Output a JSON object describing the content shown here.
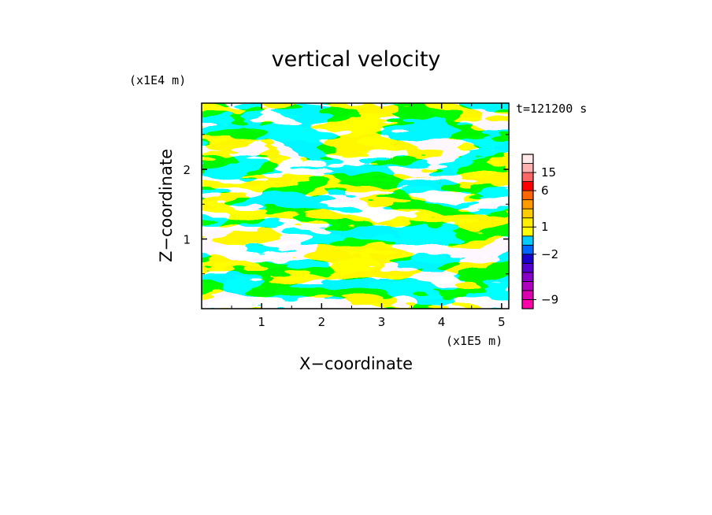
{
  "chart_data": {
    "type": "heatmap",
    "title": "vertical velocity",
    "xlabel": "X−coordinate",
    "ylabel": "Z−coordinate",
    "x_unit": "(x1E5 m)",
    "y_unit": "(x1E4 m)",
    "time_label": "t=121200 s",
    "xlim": [
      0,
      5.12
    ],
    "ylim": [
      0,
      2.95
    ],
    "x_ticks": [
      1,
      2,
      3,
      4,
      5
    ],
    "y_ticks": [
      1,
      2
    ],
    "x_tick_labels": [
      "1",
      "2",
      "3",
      "4",
      "5"
    ],
    "y_tick_labels": [
      "1",
      "2"
    ],
    "field_colors": {
      "positive": "#ffff00",
      "negative": "#00eeff"
    },
    "colorbar": {
      "levels": [
        -12,
        -9,
        -7,
        -5,
        -4,
        -3,
        -2,
        -1,
        0,
        1,
        2,
        3,
        4,
        6,
        10,
        15,
        20,
        25
      ],
      "colors": [
        "#ff00aa",
        "#dd00b0",
        "#b000c0",
        "#8800c8",
        "#5500d0",
        "#1a00cc",
        "#0066ff",
        "#00ccff",
        "#ffff00",
        "#ffee00",
        "#ffcc00",
        "#ff9900",
        "#ff6600",
        "#ff0000",
        "#ff6666",
        "#ffb0b0",
        "#ffe8e8"
      ],
      "tick_values": [
        15,
        6,
        1,
        -2,
        -9
      ],
      "tick_labels": [
        "15",
        "6",
        "1",
        "−2",
        "−9"
      ]
    }
  }
}
